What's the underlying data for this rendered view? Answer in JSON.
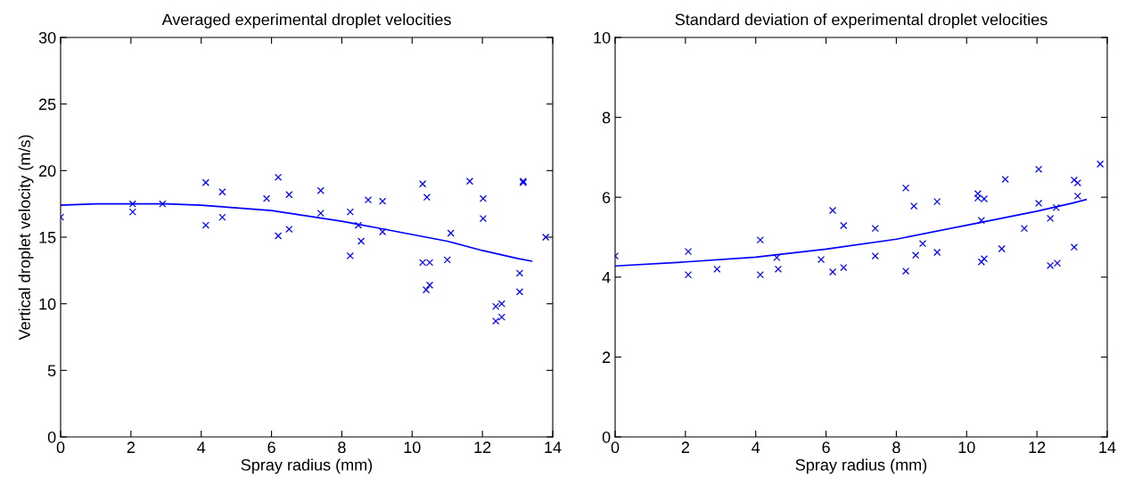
{
  "chart_data": [
    {
      "type": "scatter",
      "title": "Averaged experimental droplet velocities",
      "xlabel": "Spray radius (mm)",
      "ylabel": "Vertical droplet velocity (m/s)",
      "xlim": [
        0,
        14
      ],
      "ylim": [
        0,
        30
      ],
      "xticks": [
        0,
        2,
        4,
        6,
        8,
        10,
        12,
        14
      ],
      "yticks": [
        0,
        5,
        10,
        15,
        20,
        25,
        30
      ],
      "grid": false,
      "legend": false,
      "series": [
        {
          "color": "#0000ff",
          "marker": "cross",
          "x": [
            0,
            2.05,
            2.05,
            2.9,
            4.13,
            4.13,
            4.6,
            4.6,
            5.86,
            6.19,
            6.19,
            6.5,
            6.5,
            7.4,
            7.4,
            8.24,
            8.24,
            8.47,
            8.55,
            8.75,
            9.16,
            9.16,
            10.3,
            10.42,
            10.3,
            10.5,
            10.5,
            10.4,
            11.0,
            11.1,
            11.64,
            12.02,
            12.02,
            13.16,
            13.16,
            13.06,
            13.06,
            12.38,
            12.55,
            12.38,
            12.55,
            13.8
          ],
          "values": [
            16.5,
            17.5,
            16.9,
            17.5,
            19.1,
            15.9,
            18.4,
            16.5,
            17.9,
            19.5,
            15.1,
            18.2,
            15.6,
            18.5,
            16.8,
            16.9,
            13.6,
            15.9,
            14.7,
            17.8,
            17.7,
            15.4,
            19.0,
            18.0,
            13.1,
            13.1,
            11.4,
            11.05,
            13.3,
            15.3,
            19.2,
            17.9,
            16.4,
            19.2,
            19.1,
            12.3,
            10.9,
            9.8,
            10.0,
            8.7,
            9.0,
            15.0
          ]
        },
        {
          "type": "line",
          "color": "#0000ff",
          "marker": "none",
          "line_style": "solid",
          "x": [
            0,
            1,
            2,
            3,
            4,
            5,
            6,
            7,
            8,
            9,
            10,
            11,
            12,
            13,
            13.4
          ],
          "values": [
            17.4,
            17.5,
            17.5,
            17.5,
            17.4,
            17.2,
            17.0,
            16.6,
            16.2,
            15.7,
            15.2,
            14.7,
            14.0,
            13.4,
            13.2
          ]
        }
      ]
    },
    {
      "type": "scatter",
      "title": "Standard deviation of experimental droplet velocities",
      "xlabel": "Spray radius (mm)",
      "xlim": [
        0,
        14
      ],
      "ylim": [
        0,
        10
      ],
      "xticks": [
        0,
        2,
        4,
        6,
        8,
        10,
        12,
        14
      ],
      "yticks": [
        0,
        2,
        4,
        6,
        8,
        10
      ],
      "grid": false,
      "legend": false,
      "series": [
        {
          "color": "#0000ff",
          "marker": "cross",
          "x": [
            0,
            2.08,
            2.08,
            2.9,
            4.13,
            4.13,
            4.6,
            4.64,
            5.86,
            6.19,
            6.19,
            6.5,
            6.5,
            7.4,
            7.4,
            8.27,
            8.27,
            8.5,
            8.55,
            8.75,
            9.16,
            9.16,
            10.32,
            10.32,
            10.5,
            10.42,
            10.42,
            10.5,
            11.0,
            11.1,
            11.64,
            12.05,
            12.05,
            12.38,
            12.38,
            12.58,
            12.55,
            13.06,
            13.16,
            13.16,
            13.06,
            13.8
          ],
          "values": [
            4.53,
            4.64,
            4.06,
            4.2,
            4.93,
            4.06,
            4.49,
            4.2,
            4.44,
            5.67,
            4.13,
            5.29,
            4.24,
            5.22,
            4.53,
            6.23,
            4.15,
            5.78,
            4.55,
            4.84,
            5.89,
            4.62,
            6.09,
            5.98,
            5.96,
            5.42,
            4.38,
            4.46,
            4.71,
            6.45,
            5.22,
            6.7,
            5.85,
            5.47,
            4.29,
            4.35,
            5.74,
            6.43,
            6.36,
            6.03,
            4.75,
            6.83
          ]
        },
        {
          "type": "line",
          "color": "#0000ff",
          "marker": "none",
          "line_style": "solid",
          "x": [
            0,
            2,
            4,
            6,
            8,
            10,
            12,
            13,
            13.4
          ],
          "values": [
            4.28,
            4.38,
            4.5,
            4.7,
            4.95,
            5.3,
            5.65,
            5.85,
            5.94
          ]
        }
      ]
    }
  ]
}
